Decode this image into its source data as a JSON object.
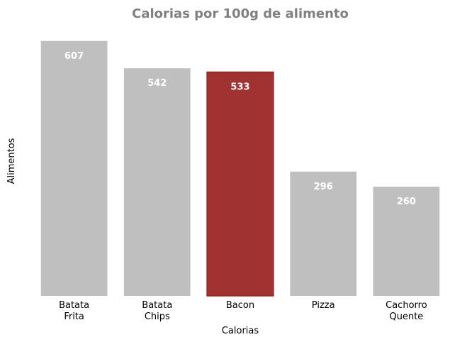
{
  "chart_data": {
    "type": "bar",
    "title": "Calorias por 100g de alimento",
    "xlabel": "Calorias",
    "ylabel": "Alimentos",
    "categories": [
      [
        "Batata",
        "Frita"
      ],
      [
        "Batata",
        "Chips"
      ],
      [
        "Bacon"
      ],
      [
        "Pizza"
      ],
      [
        "Cachorro",
        "Quente"
      ]
    ],
    "values": [
      607,
      542,
      533,
      296,
      260
    ],
    "ylim": [
      0,
      637
    ],
    "grid": false,
    "highlight_index": 2,
    "colors": {
      "default_bar": "#bfbfbf",
      "highlight_bar": "#a03232",
      "highlight_edge": "#9a1f1f",
      "data_label": "#ffffff",
      "title": "#808080"
    }
  }
}
